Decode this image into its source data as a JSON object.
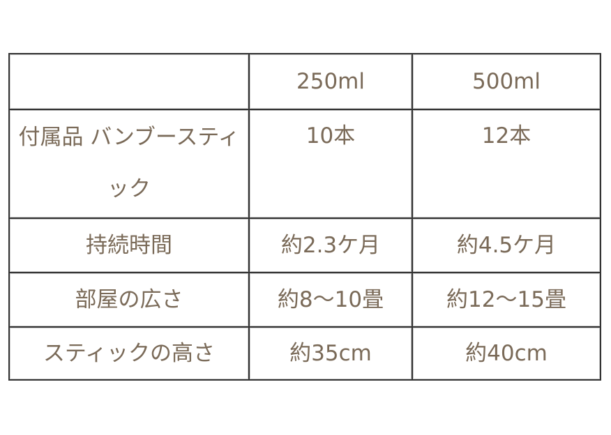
{
  "table": {
    "header": [
      "",
      "250ml",
      "500ml"
    ],
    "rows": [
      [
        "付属品 バンブースティック",
        "10本",
        "12本"
      ],
      [
        "持続時間",
        "約2.3ケ月",
        "約4.5ケ月"
      ],
      [
        "部屋の広さ",
        "約8〜10畳",
        "約12〜15畳"
      ],
      [
        "スティックの高さ",
        "約35cm",
        "約40cm"
      ]
    ]
  },
  "colors": {
    "text": "#7a6a58",
    "border": "#333333"
  }
}
